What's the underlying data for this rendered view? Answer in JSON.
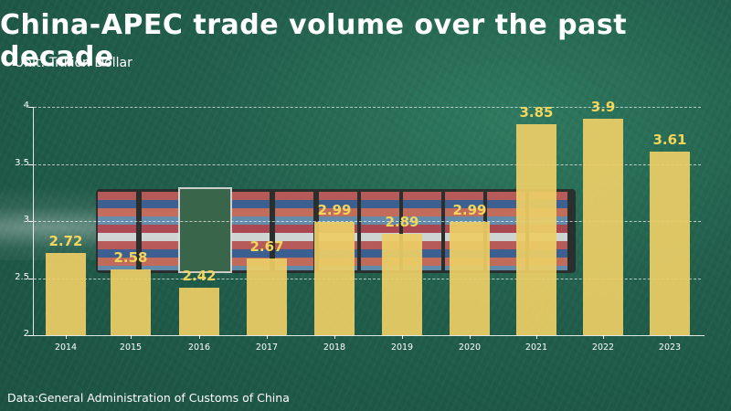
{
  "header": {
    "title": "China-APEC trade volume over the past decade",
    "unit": "Unit: Trillion Dollar"
  },
  "footer": {
    "source": "Data:General Administration of Customs of China"
  },
  "colors": {
    "bar": "#ECCD66",
    "value_label": "#F3D65B",
    "background": "#215E4B",
    "text": "#FFFFFF"
  },
  "axis": {
    "y_ticks": [
      "2",
      "2.5",
      "3",
      "3.5",
      "4"
    ],
    "x_ticks": [
      "2014",
      "2015",
      "2016",
      "2017",
      "2018",
      "2019",
      "2020",
      "2021",
      "2022",
      "2023"
    ]
  },
  "bars": [
    {
      "year": "2014",
      "label": "2.72"
    },
    {
      "year": "2015",
      "label": "2.58"
    },
    {
      "year": "2016",
      "label": "2.42"
    },
    {
      "year": "2017",
      "label": "2.67"
    },
    {
      "year": "2018",
      "label": "2.99"
    },
    {
      "year": "2019",
      "label": "2.89"
    },
    {
      "year": "2020",
      "label": "2.99"
    },
    {
      "year": "2021",
      "label": "3.85"
    },
    {
      "year": "2022",
      "label": "3.9"
    },
    {
      "year": "2023",
      "label": "3.61"
    }
  ],
  "chart_data": {
    "type": "bar",
    "title": "China-APEC trade volume over the past decade",
    "subtitle": "Unit: Trillion Dollar",
    "categories": [
      "2014",
      "2015",
      "2016",
      "2017",
      "2018",
      "2019",
      "2020",
      "2021",
      "2022",
      "2023"
    ],
    "values": [
      2.72,
      2.58,
      2.42,
      2.67,
      2.99,
      2.89,
      2.99,
      3.85,
      3.9,
      3.61
    ],
    "xlabel": "",
    "ylabel": "Trillion Dollar",
    "ylim": [
      2,
      4
    ],
    "yticks": [
      2,
      2.5,
      3,
      3.5,
      4
    ],
    "grid": "horizontal dashed",
    "legend": null,
    "annotations": [
      "Data:General Administration of Customs of China"
    ]
  }
}
